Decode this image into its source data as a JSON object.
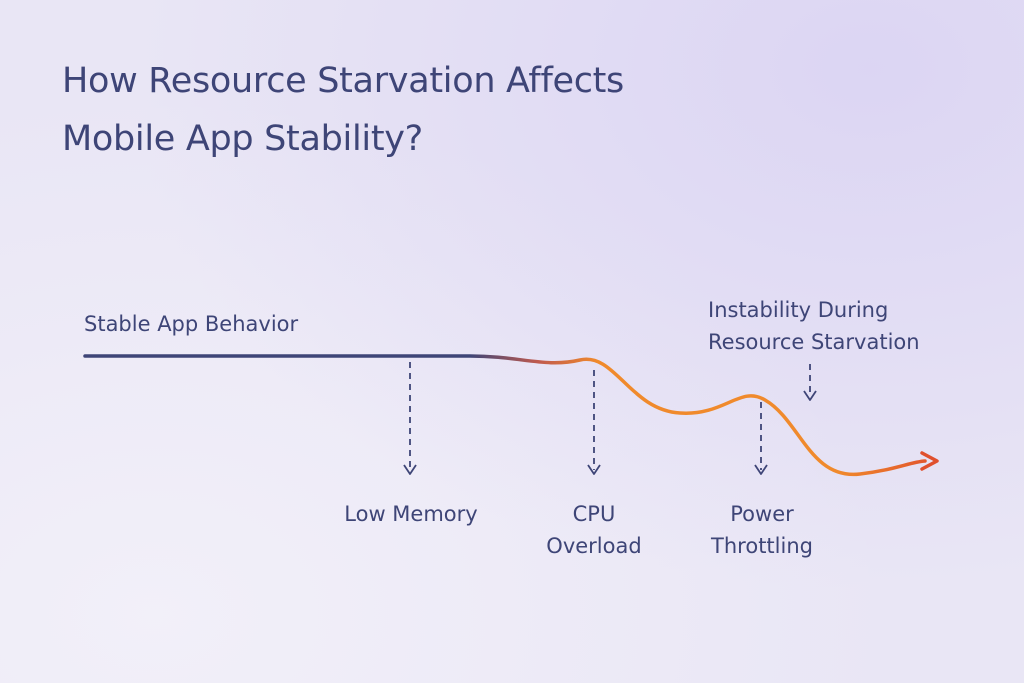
{
  "title": {
    "line1": "How Resource Starvation Affects",
    "line2": "Mobile App Stability?"
  },
  "labels": {
    "stable": "Stable App Behavior",
    "instability_line1": "Instability During",
    "instability_line2": "Resource Starvation",
    "low_memory": "Low Memory",
    "cpu_line1": "CPU",
    "cpu_line2": "Overload",
    "power_line1": "Power",
    "power_line2": "Throttling"
  },
  "colors": {
    "text": "#3e4577",
    "curve_start": "#3e4577",
    "curve_orange": "#f08a2c",
    "curve_end": "#e0502d",
    "background": "#e9e6f5"
  }
}
